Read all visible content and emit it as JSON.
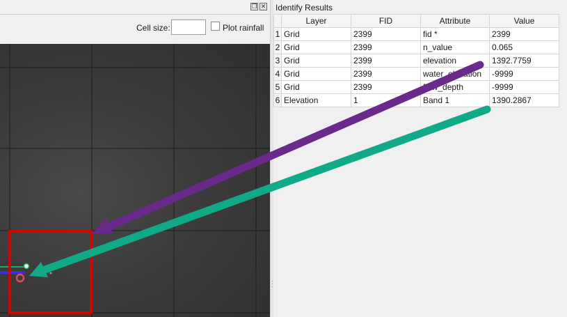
{
  "left_panel": {
    "cell_size_label": "Cell size:",
    "cell_size_value": "",
    "plot_rainfall_label": "Plot rainfall",
    "plot_rainfall_checked": false
  },
  "identify": {
    "title": "Identify Results",
    "columns": [
      "Layer",
      "FID",
      "Attribute",
      "Value"
    ],
    "rows": [
      {
        "n": "1",
        "layer": "Grid",
        "fid": "2399",
        "attribute": "fid *",
        "value": "2399"
      },
      {
        "n": "2",
        "layer": "Grid",
        "fid": "2399",
        "attribute": "n_value",
        "value": "0.065"
      },
      {
        "n": "3",
        "layer": "Grid",
        "fid": "2399",
        "attribute": "elevation",
        "value": "1392.7759"
      },
      {
        "n": "4",
        "layer": "Grid",
        "fid": "2399",
        "attribute": "water_elevation",
        "value": "-9999"
      },
      {
        "n": "5",
        "layer": "Grid",
        "fid": "2399",
        "attribute": "flow_depth",
        "value": "-9999"
      },
      {
        "n": "6",
        "layer": "Elevation",
        "fid": "1",
        "attribute": "Band 1",
        "value": "1390.2867"
      }
    ]
  },
  "colors": {
    "highlight_box": "#e00000",
    "purple_arrow": "#6a2a8c",
    "teal_arrow": "#10aa88",
    "line_blue": "#3d2fd6",
    "line_green": "#18b060",
    "point_red": "#e24a5a"
  }
}
